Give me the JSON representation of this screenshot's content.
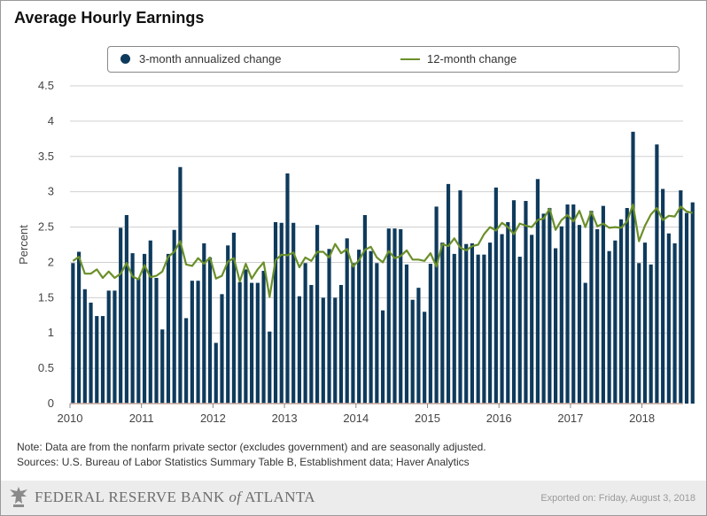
{
  "title": "Average Hourly Earnings",
  "legend": {
    "bar_label": "3-month annualized change",
    "line_label": "12-month change"
  },
  "note": "Note: Data are from the nonfarm private sector (excludes government) and are seasonally adjusted.",
  "sources": "Sources: U.S. Bureau of Labor Statistics Summary Table B, Establishment data; Haver Analytics",
  "footer": {
    "org_prefix": "FEDERAL RESERVE BANK",
    "org_of": "of",
    "org_suffix": "ATLANTA",
    "exported": "Exported on: Friday, August 3, 2018"
  },
  "colors": {
    "bar": "#0e3a5c",
    "line": "#6b8f2a",
    "grid": "#d0d0d0"
  },
  "chart_data": {
    "type": "bar",
    "title": "Average Hourly Earnings",
    "xlabel": "",
    "ylabel": "Percent",
    "ylim": [
      0,
      4.5
    ],
    "yticks": [
      0,
      0.5,
      1,
      1.5,
      2,
      2.5,
      3,
      3.5,
      4,
      4.5
    ],
    "ytick_labels": [
      "0",
      "0.5",
      "1",
      "1.5",
      "2",
      "2.5",
      "3",
      "3.5",
      "4",
      "4.5"
    ],
    "xticks": [
      "2010",
      "2011",
      "2012",
      "2013",
      "2014",
      "2015",
      "2016",
      "2017",
      "2018"
    ],
    "start": "2010-01",
    "end": "2018-07",
    "series": [
      {
        "name": "3-month annualized change",
        "kind": "bar",
        "values": [
          1.99,
          2.15,
          1.62,
          1.43,
          1.24,
          1.24,
          1.6,
          1.6,
          2.49,
          2.67,
          2.13,
          1.78,
          2.12,
          2.31,
          1.78,
          1.05,
          2.12,
          2.46,
          3.35,
          1.21,
          1.74,
          1.74,
          2.27,
          2.07,
          0.86,
          1.55,
          2.24,
          2.42,
          1.72,
          1.9,
          1.71,
          1.71,
          1.88,
          1.02,
          2.57,
          2.56,
          3.26,
          2.56,
          1.52,
          1.99,
          1.68,
          2.53,
          1.5,
          2.19,
          1.5,
          1.68,
          2.34,
          1.99,
          2.18,
          2.67,
          2.16,
          1.99,
          1.32,
          2.48,
          2.48,
          2.47,
          1.97,
          1.47,
          1.64,
          1.3,
          1.98,
          2.79,
          2.28,
          3.11,
          2.12,
          3.02,
          2.26,
          2.27,
          2.11,
          2.11,
          2.28,
          3.06,
          2.4,
          2.57,
          2.88,
          2.08,
          2.87,
          2.39,
          3.18,
          2.69,
          2.77,
          2.2,
          2.51,
          2.82,
          2.82,
          2.53,
          1.71,
          2.73,
          2.47,
          2.8,
          2.16,
          2.31,
          2.61,
          2.77,
          3.85,
          1.99,
          2.28,
          1.97,
          3.67,
          3.04,
          2.41,
          2.27,
          3.02,
          2.7,
          2.85
        ]
      },
      {
        "name": "12-month change",
        "kind": "line",
        "values": [
          2.02,
          2.08,
          1.84,
          1.84,
          1.9,
          1.78,
          1.87,
          1.78,
          1.84,
          1.99,
          1.8,
          1.76,
          1.96,
          1.79,
          1.81,
          1.87,
          2.08,
          2.15,
          2.3,
          1.97,
          1.95,
          2.06,
          1.98,
          2.07,
          1.77,
          1.81,
          2.01,
          2.06,
          1.73,
          1.98,
          1.77,
          1.9,
          2.0,
          1.51,
          2.03,
          2.11,
          2.1,
          2.14,
          1.93,
          2.07,
          2.02,
          2.15,
          2.15,
          2.07,
          2.26,
          2.13,
          2.19,
          1.94,
          2.03,
          2.18,
          2.22,
          2.07,
          2.0,
          2.16,
          2.06,
          2.09,
          2.17,
          2.04,
          2.04,
          2.02,
          2.13,
          1.94,
          2.26,
          2.23,
          2.34,
          2.21,
          2.17,
          2.23,
          2.25,
          2.4,
          2.5,
          2.45,
          2.56,
          2.5,
          2.4,
          2.55,
          2.52,
          2.5,
          2.6,
          2.62,
          2.76,
          2.46,
          2.6,
          2.67,
          2.58,
          2.73,
          2.5,
          2.72,
          2.51,
          2.55,
          2.49,
          2.5,
          2.49,
          2.58,
          2.82,
          2.3,
          2.52,
          2.68,
          2.77,
          2.6,
          2.66,
          2.65,
          2.79,
          2.72,
          2.7
        ]
      }
    ]
  }
}
